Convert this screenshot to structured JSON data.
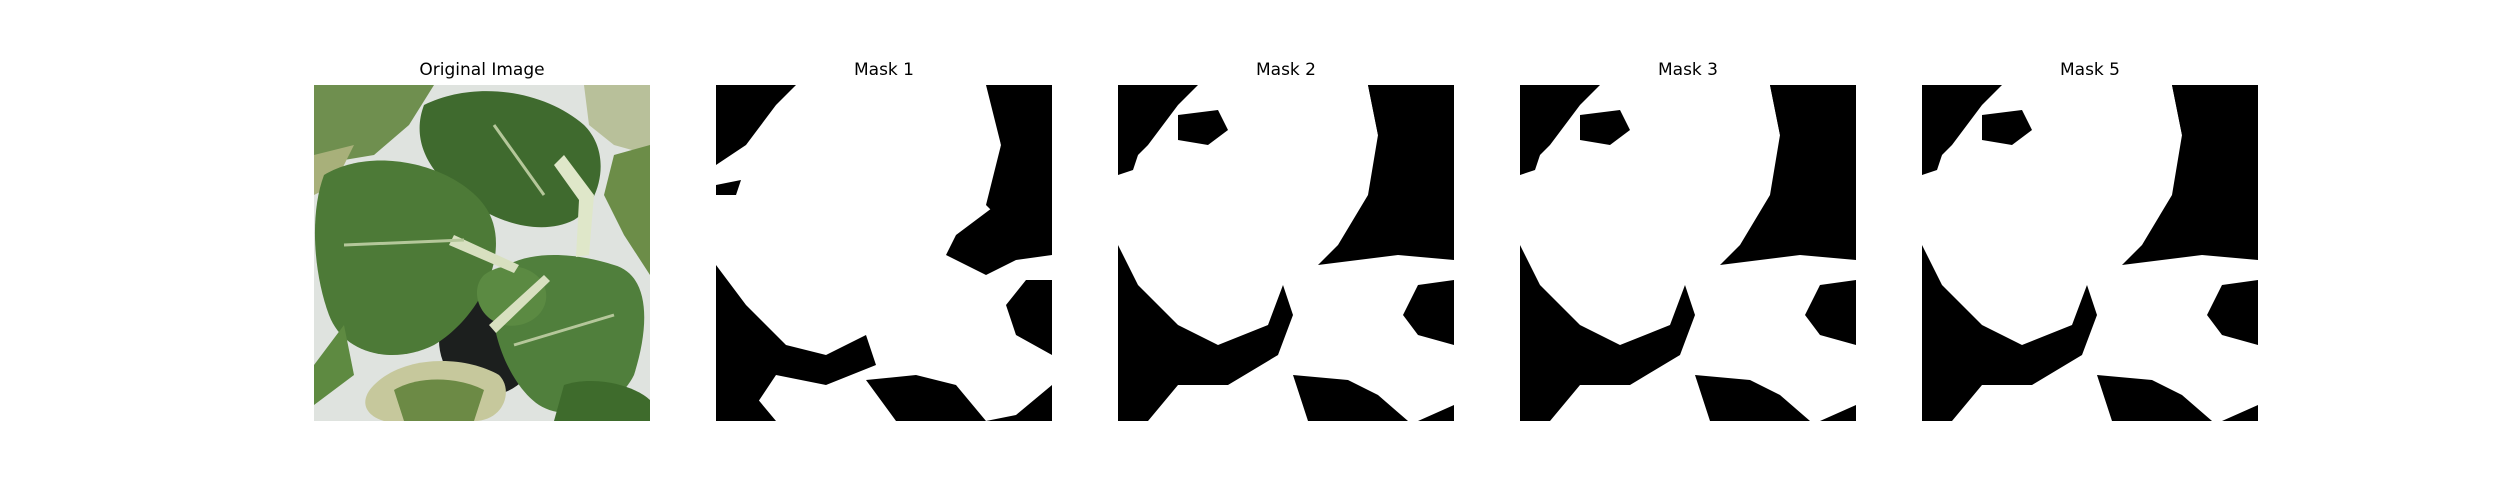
{
  "figure": {
    "panels": [
      {
        "title": "Original Image",
        "content": "photo of green leafy plant (bok choy) viewed from above on white background"
      },
      {
        "title": "Mask 1",
        "content": "binary segmentation mask: white = plant, black = background"
      },
      {
        "title": "Mask 2",
        "content": "binary segmentation mask: white = plant, black = background"
      },
      {
        "title": "Mask 3",
        "content": "binary segmentation mask: white = plant, black = background"
      },
      {
        "title": "Mask 5",
        "content": "binary segmentation mask: white = plant, black = background"
      }
    ]
  },
  "colors": {
    "mask_fg": "#ffffff",
    "mask_bg": "#000000",
    "leaf": "#4f7a3a"
  }
}
